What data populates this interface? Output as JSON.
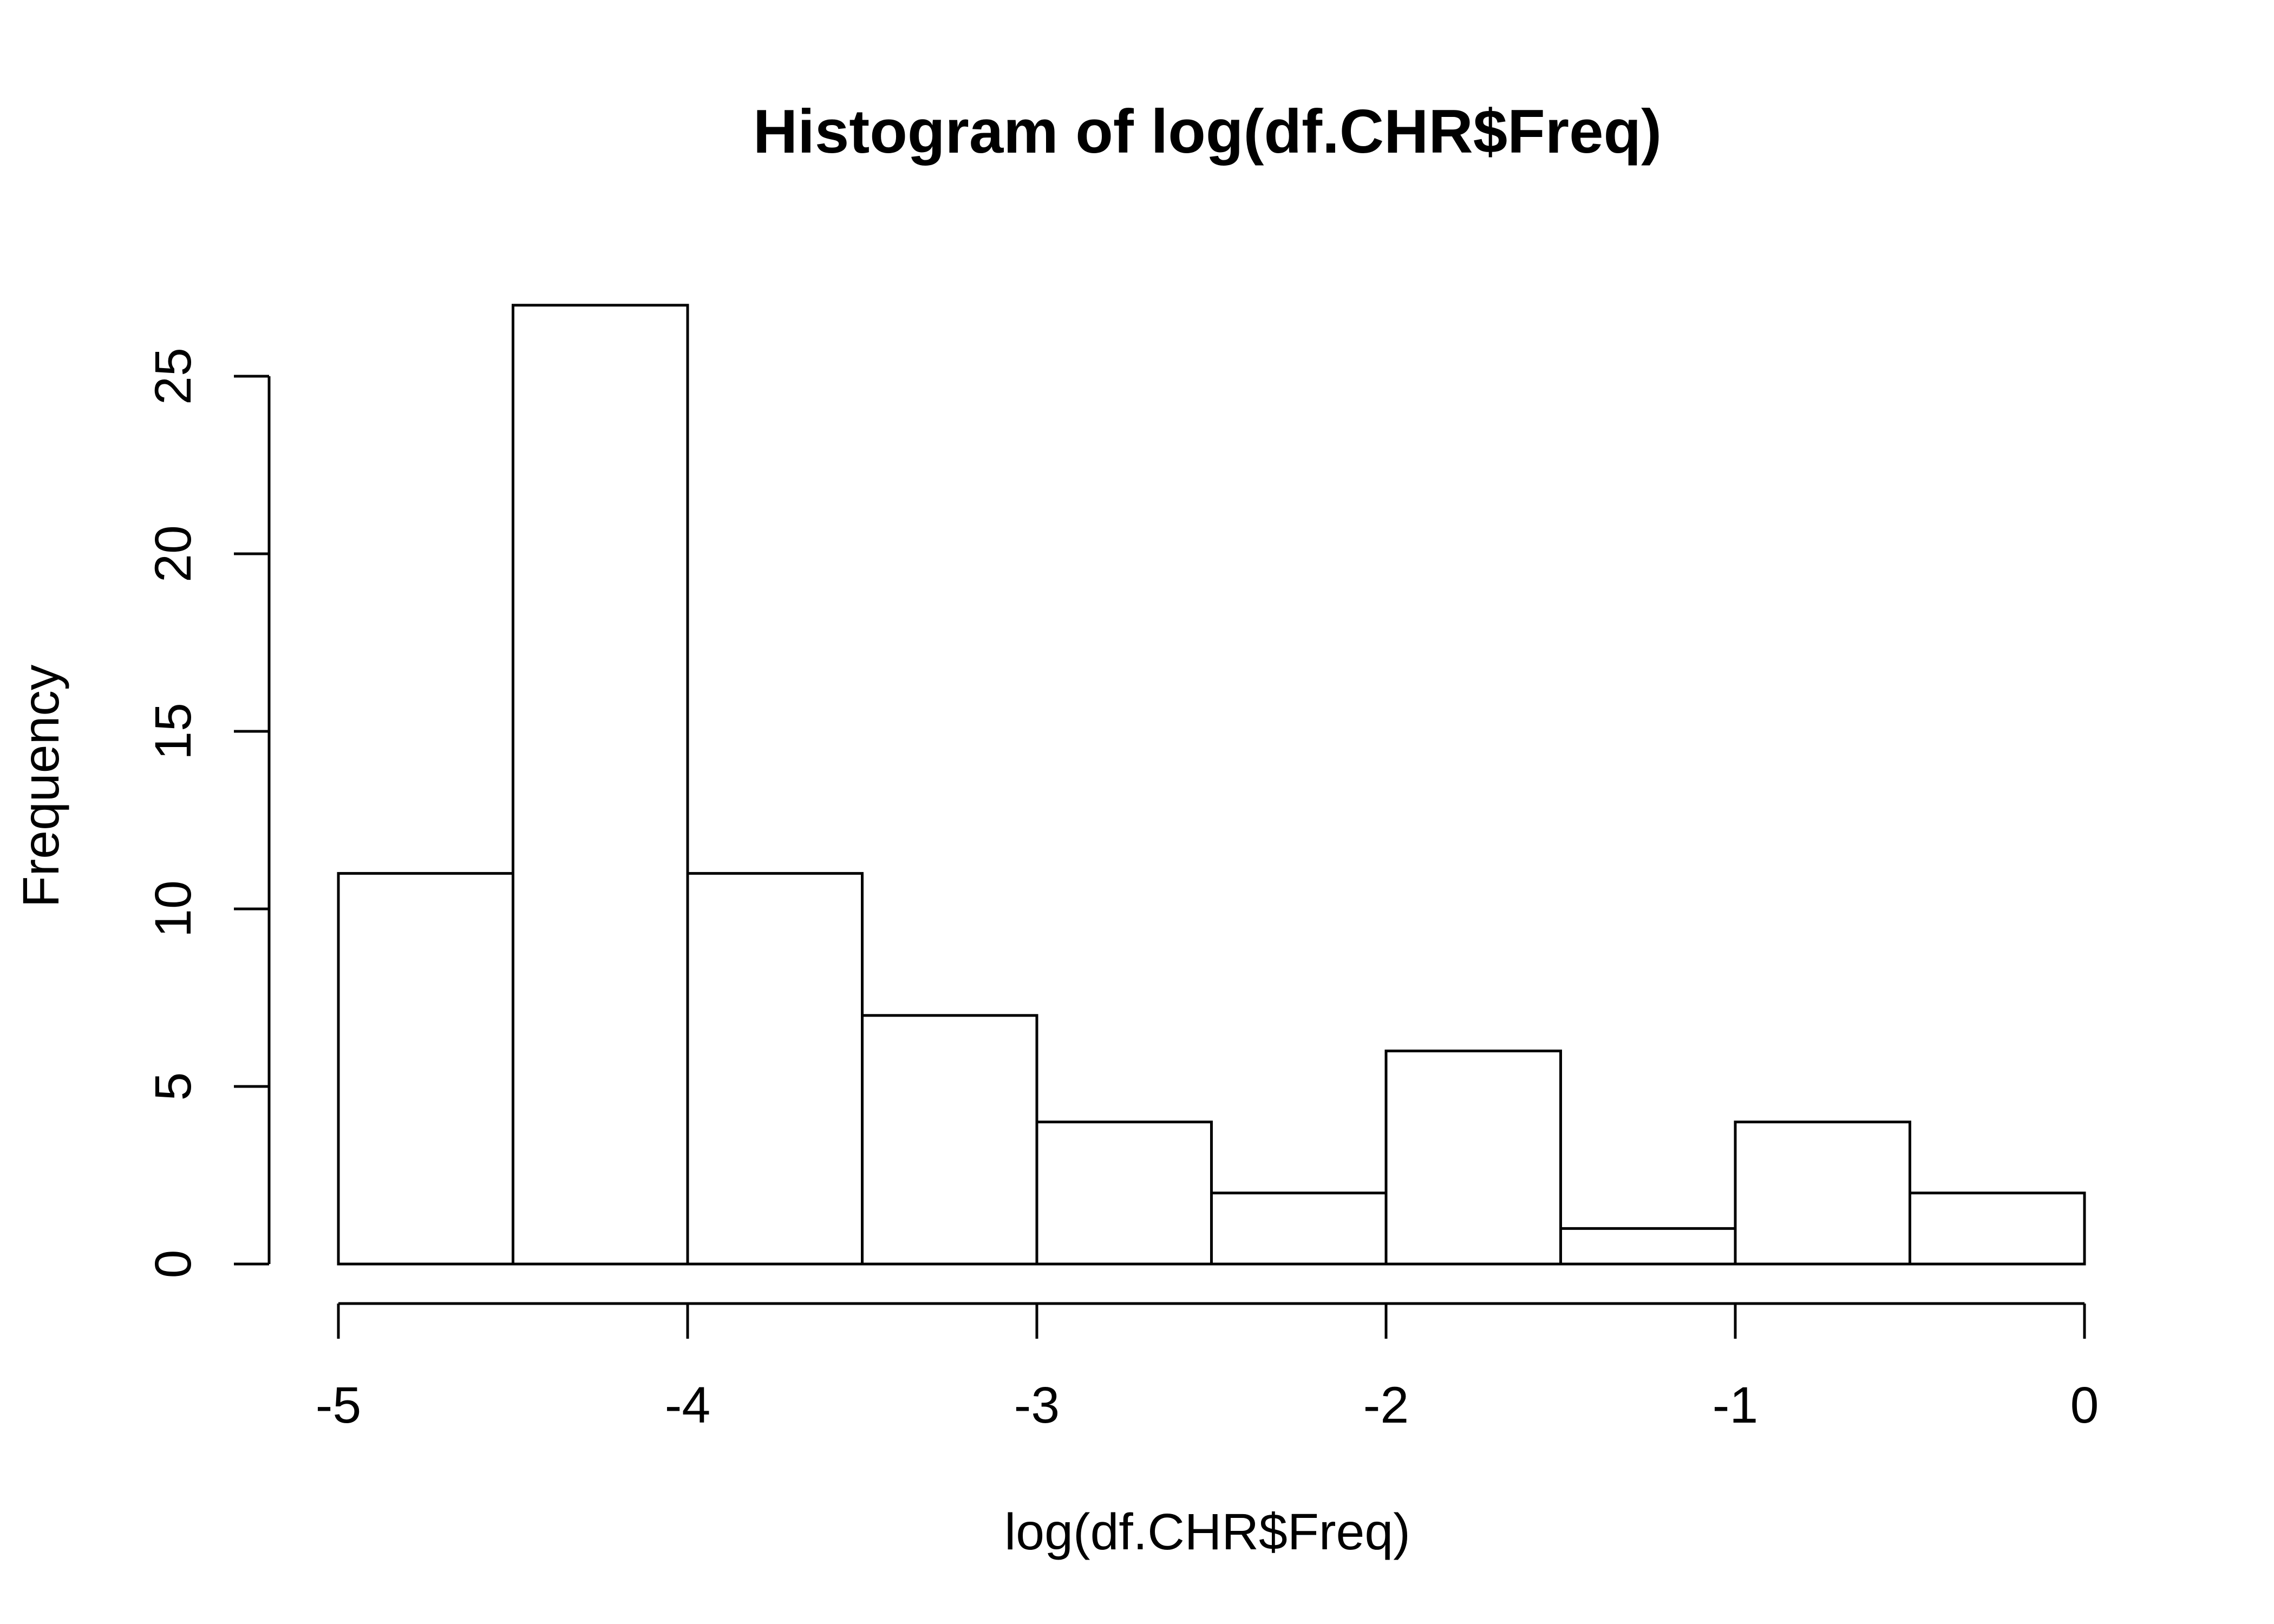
{
  "chart_data": {
    "type": "bar",
    "title": "Histogram of log(df.CHR$Freq)",
    "xlabel": "log(df.CHR$Freq)",
    "ylabel": "Frequency",
    "bins": [
      {
        "start": -5.0,
        "end": -4.5,
        "count": 11
      },
      {
        "start": -4.5,
        "end": -4.0,
        "count": 27
      },
      {
        "start": -4.0,
        "end": -3.5,
        "count": 11
      },
      {
        "start": -3.5,
        "end": -3.0,
        "count": 7
      },
      {
        "start": -3.0,
        "end": -2.5,
        "count": 4
      },
      {
        "start": -2.5,
        "end": -2.0,
        "count": 2
      },
      {
        "start": -2.0,
        "end": -1.5,
        "count": 6
      },
      {
        "start": -1.5,
        "end": -1.0,
        "count": 1
      },
      {
        "start": -1.0,
        "end": -0.5,
        "count": 4
      },
      {
        "start": -0.5,
        "end": 0.0,
        "count": 2
      }
    ],
    "xlim": [
      -5,
      0
    ],
    "ylim": [
      0,
      27
    ],
    "xticks": [
      "-5",
      "-4",
      "-3",
      "-2",
      "-1",
      "0"
    ],
    "yticks": [
      "0",
      "5",
      "10",
      "15",
      "20",
      "25"
    ],
    "grid": false,
    "colors": {
      "bar_fill": "#ffffff",
      "bar_stroke": "#000000"
    }
  }
}
